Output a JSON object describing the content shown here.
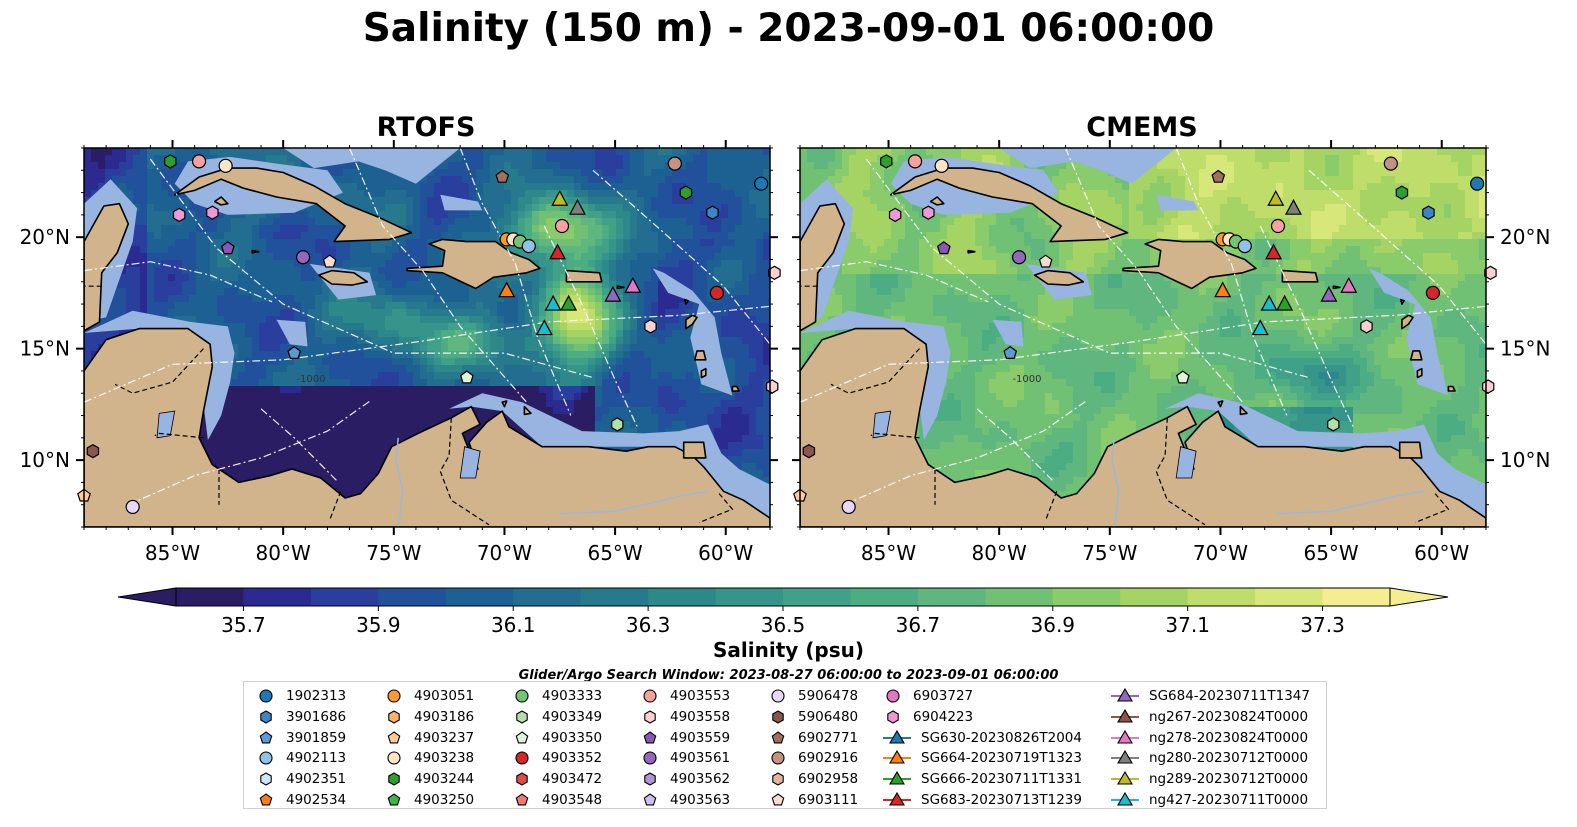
{
  "title": "Salinity (150 m) - 2023-09-01 06:00:00",
  "panels": [
    {
      "title": "RTOFS",
      "mode": "rtofs"
    },
    {
      "title": "CMEMS",
      "mode": "cmems"
    }
  ],
  "map": {
    "lon_range": [
      -89.0,
      -58.0
    ],
    "lat_range": [
      7.0,
      24.0
    ],
    "lon_ticks": [
      -85,
      -80,
      -75,
      -70,
      -65,
      -60
    ],
    "lon_tick_labels": [
      "85°W",
      "80°W",
      "75°W",
      "70°W",
      "65°W",
      "60°W"
    ],
    "lat_ticks": [
      10,
      15,
      20
    ],
    "lat_tick_labels": [
      "10°N",
      "15°N",
      "20°N"
    ],
    "contour_labels": [
      "-1000"
    ],
    "colors": {
      "land": "#d2b48c",
      "shallow": "#98b4e0",
      "coast": "#000000"
    }
  },
  "colorbar": {
    "label": "Salinity (psu)",
    "min": 35.6,
    "max": 37.4,
    "step": 0.1,
    "ticks": [
      "35.7",
      "35.9",
      "36.1",
      "36.3",
      "36.5",
      "36.7",
      "36.9",
      "37.1",
      "37.3"
    ],
    "colors": [
      "#2b1d63",
      "#2a2a91",
      "#2a3e9e",
      "#21519b",
      "#1d6193",
      "#236e90",
      "#277a8c",
      "#2c8889",
      "#36948a",
      "#41a088",
      "#4cad82",
      "#5fb67e",
      "#70c173",
      "#8acb6b",
      "#a5d465",
      "#bfdd6a",
      "#d8e77a",
      "#f5ee90"
    ]
  },
  "search_window": "Glider/Argo Search Window: 2023-08-27 06:00:00 to 2023-09-01 06:00:00",
  "legend": [
    {
      "label": "1902313",
      "marker": "circle",
      "color": "#1f77b4"
    },
    {
      "label": "3901686",
      "marker": "hexagon",
      "color": "#3b86c8"
    },
    {
      "label": "3901859",
      "marker": "pentagon",
      "color": "#5b9bd5"
    },
    {
      "label": "4902113",
      "marker": "circle",
      "color": "#8fc3ea"
    },
    {
      "label": "4902351",
      "marker": "hexagon",
      "color": "#cfe6f8"
    },
    {
      "label": "4902534",
      "marker": "pentagon",
      "color": "#ff7f0e"
    },
    {
      "label": "4903051",
      "marker": "circle",
      "color": "#ff9933"
    },
    {
      "label": "4903186",
      "marker": "hexagon",
      "color": "#ffb366"
    },
    {
      "label": "4903237",
      "marker": "pentagon",
      "color": "#ffcc99"
    },
    {
      "label": "4903238",
      "marker": "circle",
      "color": "#ffe5c4"
    },
    {
      "label": "4903244",
      "marker": "hexagon",
      "color": "#2ca02c"
    },
    {
      "label": "4903250",
      "marker": "pentagon",
      "color": "#3cb44b"
    },
    {
      "label": "4903333",
      "marker": "circle",
      "color": "#74c476"
    },
    {
      "label": "4903349",
      "marker": "hexagon",
      "color": "#b2e0a8"
    },
    {
      "label": "4903350",
      "marker": "pentagon",
      "color": "#e0f5d8"
    },
    {
      "label": "4903352",
      "marker": "circle",
      "color": "#d62728"
    },
    {
      "label": "4903472",
      "marker": "hexagon",
      "color": "#e04a4a"
    },
    {
      "label": "4903548",
      "marker": "pentagon",
      "color": "#f27878"
    },
    {
      "label": "4903553",
      "marker": "circle",
      "color": "#f7a1a1"
    },
    {
      "label": "4903558",
      "marker": "hexagon",
      "color": "#fcd0d0"
    },
    {
      "label": "4903559",
      "marker": "pentagon",
      "color": "#8a56b8"
    },
    {
      "label": "4903561",
      "marker": "circle",
      "color": "#9467bd"
    },
    {
      "label": "4903562",
      "marker": "hexagon",
      "color": "#b195d8"
    },
    {
      "label": "4903563",
      "marker": "pentagon",
      "color": "#d0bfee"
    },
    {
      "label": "5906478",
      "marker": "circle",
      "color": "#e8d8f8"
    },
    {
      "label": "5906480",
      "marker": "hexagon",
      "color": "#8c564b"
    },
    {
      "label": "6902771",
      "marker": "pentagon",
      "color": "#a0705f"
    },
    {
      "label": "6902916",
      "marker": "circle",
      "color": "#c49282"
    },
    {
      "label": "6902958",
      "marker": "hexagon",
      "color": "#e6b2a0"
    },
    {
      "label": "6903111",
      "marker": "pentagon",
      "color": "#fbdcd0"
    },
    {
      "label": "6903727",
      "marker": "circle",
      "color": "#e377c2"
    },
    {
      "label": "6904223",
      "marker": "hexagon",
      "color": "#ee99d6"
    },
    {
      "label": "SG630-20230826T2004",
      "marker": "triangle-line",
      "color": "#1f77b4"
    },
    {
      "label": "SG664-20230719T1323",
      "marker": "triangle-line",
      "color": "#ff7f0e"
    },
    {
      "label": "SG666-20230711T1331",
      "marker": "triangle-line",
      "color": "#2ca02c"
    },
    {
      "label": "SG683-20230713T1239",
      "marker": "triangle-line",
      "color": "#d62728"
    },
    {
      "label": "SG684-20230711T1347",
      "marker": "triangle-line",
      "color": "#9467bd"
    },
    {
      "label": "ng267-20230824T0000",
      "marker": "triangle-line",
      "color": "#8c564b"
    },
    {
      "label": "ng278-20230824T0000",
      "marker": "triangle-line",
      "color": "#e377c2"
    },
    {
      "label": "ng280-20230712T0000",
      "marker": "triangle-line",
      "color": "#7f7f7f"
    },
    {
      "label": "ng289-20230712T0000",
      "marker": "triangle-line",
      "color": "#bcbd22"
    },
    {
      "label": "ng427-20230711T0000",
      "marker": "triangle-line",
      "color": "#17becf"
    }
  ],
  "chart_data": [
    {
      "type": "heatmap",
      "title": "RTOFS",
      "variable": "Salinity (psu)",
      "depth": "150 m",
      "time": "2023-09-01 06:00:00",
      "lon_range": [
        -89.0,
        -58.0
      ],
      "lat_range": [
        7.0,
        24.0
      ],
      "color_range": [
        35.6,
        37.4
      ],
      "observations": [
        {
          "id": "4903244",
          "lon": -85.1,
          "lat": 23.4
        },
        {
          "id": "4903553",
          "lon": -83.8,
          "lat": 23.4
        },
        {
          "id": "4903238",
          "lon": -82.6,
          "lat": 23.2
        },
        {
          "id": "6902771",
          "lon": -70.1,
          "lat": 22.7
        },
        {
          "id": "6902916",
          "lon": -62.3,
          "lat": 23.3
        },
        {
          "id": "1902313",
          "lon": -58.4,
          "lat": 22.4
        },
        {
          "id": "4903244",
          "lon": -61.8,
          "lat": 22.0
        },
        {
          "id": "3901686",
          "lon": -60.6,
          "lat": 21.1
        },
        {
          "id": "6904223",
          "lon": -84.7,
          "lat": 21.0
        },
        {
          "id": "6904223",
          "lon": -83.2,
          "lat": 21.1
        },
        {
          "id": "4903559",
          "lon": -82.5,
          "lat": 19.5
        },
        {
          "id": "4903561",
          "lon": -79.1,
          "lat": 19.1
        },
        {
          "id": "6903111",
          "lon": -77.9,
          "lat": 18.9
        },
        {
          "id": "4903051",
          "lon": -69.9,
          "lat": 19.9
        },
        {
          "id": "4903238",
          "lon": -69.6,
          "lat": 19.9
        },
        {
          "id": "4903333",
          "lon": -69.3,
          "lat": 19.8
        },
        {
          "id": "4902113",
          "lon": -68.9,
          "lat": 19.6
        },
        {
          "id": "4903553",
          "lon": -67.4,
          "lat": 20.5
        },
        {
          "id": "4903558",
          "lon": -57.8,
          "lat": 18.4
        },
        {
          "id": "4903352",
          "lon": -60.4,
          "lat": 17.5
        },
        {
          "id": "4903558",
          "lon": -63.4,
          "lat": 16.0
        },
        {
          "id": "3901859",
          "lon": -79.5,
          "lat": 14.8
        },
        {
          "id": "4903350",
          "lon": -71.7,
          "lat": 13.7
        },
        {
          "id": "4903349",
          "lon": -64.9,
          "lat": 11.6
        },
        {
          "id": "4903558",
          "lon": -57.9,
          "lat": 13.3
        },
        {
          "id": "5906480",
          "lon": -88.6,
          "lat": 10.4
        },
        {
          "id": "4903237",
          "lon": -89.0,
          "lat": 8.4
        },
        {
          "id": "5906478",
          "lon": -86.8,
          "lat": 7.9
        }
      ],
      "glider_tracks": [
        {
          "id": "ng289-20230712T0000",
          "lon": -67.5,
          "lat": 21.7
        },
        {
          "id": "ng280-20230712T0000",
          "lon": -66.7,
          "lat": 21.3
        },
        {
          "id": "SG683-20230713T1239",
          "lon": -67.6,
          "lat": 19.3
        },
        {
          "id": "SG664-20230719T1323",
          "lon": -69.9,
          "lat": 17.6
        },
        {
          "id": "SG684-20230711T1347",
          "lon": -65.1,
          "lat": 17.4
        },
        {
          "id": "ng278-20230824T0000",
          "lon": -64.2,
          "lat": 17.8
        },
        {
          "id": "ng427-20230711T0000",
          "lon": -67.8,
          "lat": 17.0
        },
        {
          "id": "SG666-20230711T1331",
          "lon": -67.1,
          "lat": 17.0
        },
        {
          "id": "ng427-20230711T0000",
          "lon": -68.2,
          "lat": 15.9
        }
      ]
    },
    {
      "type": "heatmap",
      "title": "CMEMS",
      "variable": "Salinity (psu)",
      "depth": "150 m",
      "time": "2023-09-01 06:00:00",
      "lon_range": [
        -89.0,
        -58.0
      ],
      "lat_range": [
        7.0,
        24.0
      ],
      "color_range": [
        35.6,
        37.4
      ],
      "observations": "same as RTOFS panel",
      "glider_tracks": "same as RTOFS panel"
    }
  ]
}
